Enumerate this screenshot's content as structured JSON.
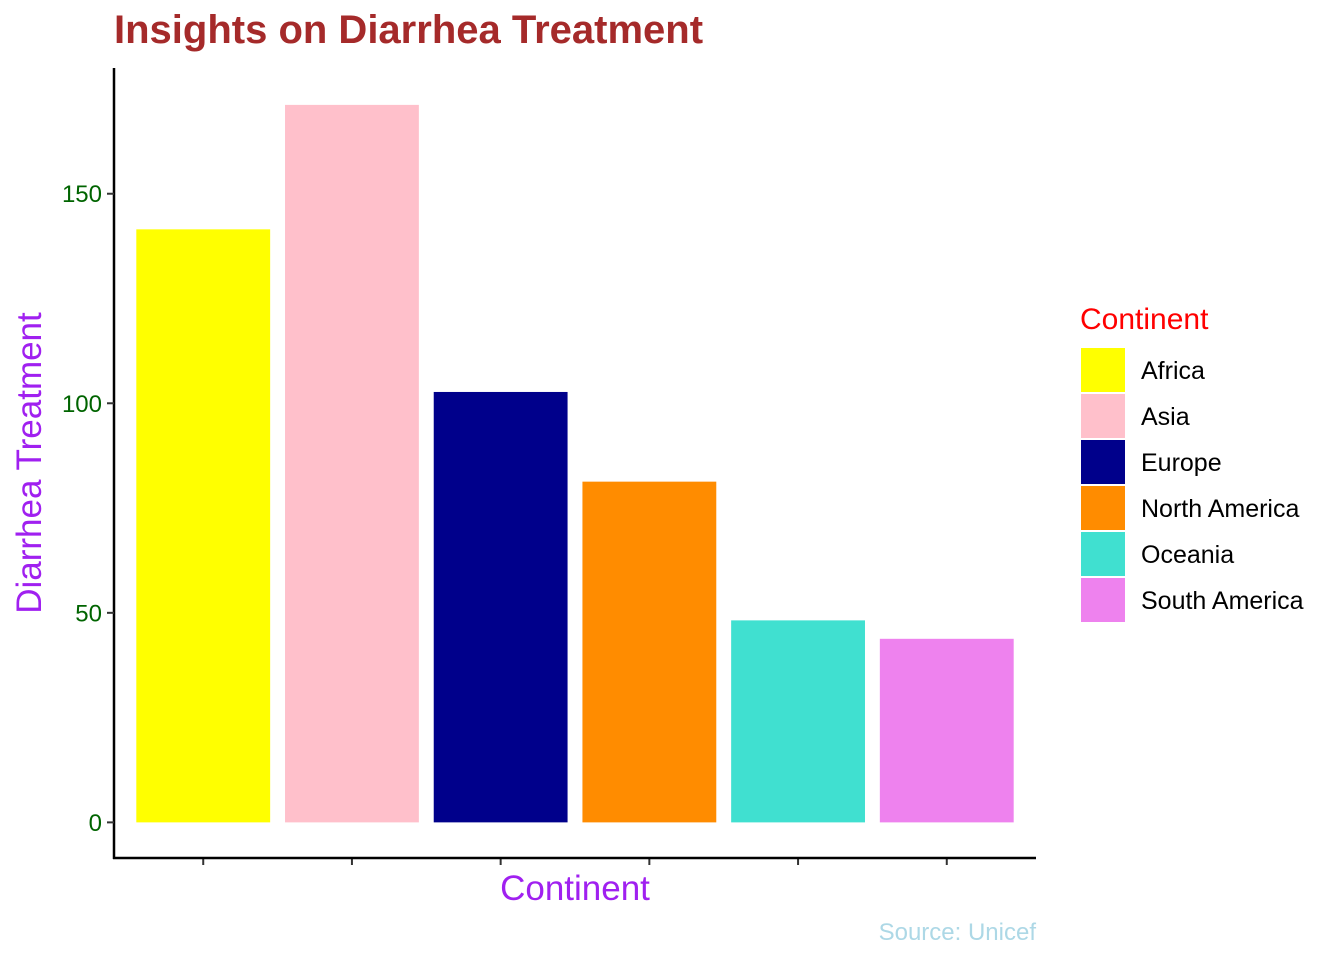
{
  "chart_data": {
    "type": "bar",
    "title": "Insights on Diarrhea Treatment",
    "xlabel": "Continent",
    "ylabel": "Diarrhea Treatment",
    "caption": "Source: Unicef",
    "categories": [
      "Africa",
      "Asia",
      "Europe",
      "North America",
      "Oceania",
      "South America"
    ],
    "values": [
      141.5,
      171.2,
      102.7,
      81.3,
      48.2,
      43.8
    ],
    "colors": [
      "#FFFF00",
      "#FFC0CB",
      "#00008B",
      "#FF8C00",
      "#40E0D0",
      "#EE82EE"
    ],
    "ylim": [
      -8.5,
      180
    ],
    "yticks": [
      0,
      50,
      100,
      150
    ],
    "ytick_labels": [
      "0",
      "50",
      "100",
      "150"
    ],
    "show_x_tick_labels": false,
    "grid": false,
    "legend": {
      "title": "Continent",
      "position": "right"
    },
    "style": {
      "title_color": "#A52A2A",
      "axis_title_color": "#A020F0",
      "tick_label_color": "#006400",
      "legend_title_color": "#FF0000",
      "caption_color": "#ADD8E6"
    }
  }
}
